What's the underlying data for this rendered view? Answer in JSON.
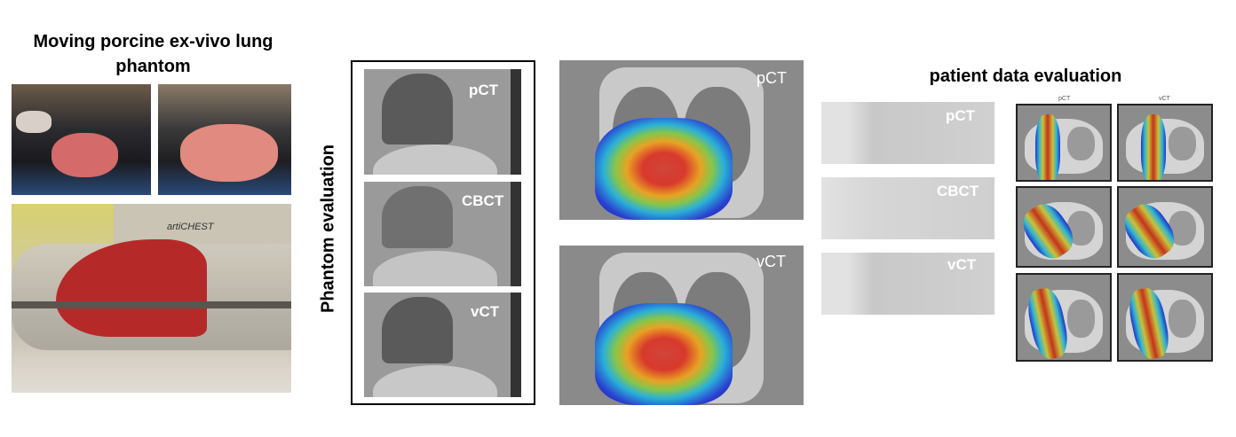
{
  "phantom_section": {
    "title": "Moving porcine ex-vivo lung phantom",
    "photo_logo_text": "artiCHEST"
  },
  "phantom_evaluation": {
    "vertical_label": "Phantom evaluation",
    "ct_panels": [
      "pCT",
      "CBCT",
      "vCT"
    ],
    "dose_panels": [
      "pCT",
      "vCT"
    ]
  },
  "patient_section": {
    "title": "patient data evaluation",
    "ct_panels": [
      "pCT",
      "CBCT",
      "vCT"
    ],
    "grid_column_headers": [
      "pCT",
      "vCT"
    ]
  },
  "colors": {
    "heatmap_high": "#c4331c",
    "heatmap_low": "#1c1fa8",
    "ct_gray": "#9a9a9a"
  }
}
